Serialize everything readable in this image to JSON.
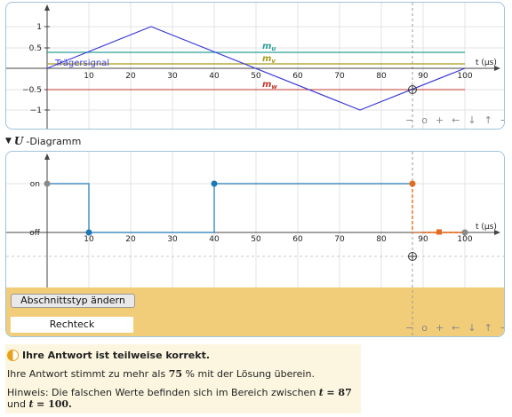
{
  "top_chart": {
    "x_axis_label": "t (µs)",
    "x_ticks": [
      "10",
      "20",
      "30",
      "40",
      "50",
      "60",
      "70",
      "80",
      "90",
      "100"
    ],
    "y_ticks": [
      "1",
      "0.5",
      "−0.5",
      "−1"
    ],
    "carrier_label": "Trägersignal",
    "series_labels": {
      "mu": "m",
      "mu_sub": "u",
      "mv": "m",
      "mv_sub": "v",
      "mw": "m",
      "mw_sub": "w"
    },
    "colors": {
      "carrier": "#3b3bd9",
      "mu": "#2aa198",
      "mv": "#a89a1c",
      "mw": "#c0392b"
    },
    "carrier_points": [
      [
        0,
        0
      ],
      [
        25,
        1
      ],
      [
        75,
        -1
      ],
      [
        100,
        0
      ]
    ],
    "mu_value": 0.4,
    "mv_value": 0.1,
    "mw_value": -0.5
  },
  "section": {
    "title_symbol": "U",
    "title_text": "-Diagramm"
  },
  "u_chart": {
    "x_axis_label": "t (µs)",
    "x_ticks": [
      "10",
      "20",
      "30",
      "40",
      "50",
      "60",
      "70",
      "80",
      "90",
      "100"
    ],
    "y_labels": {
      "on": "on",
      "off": "off"
    },
    "colors": {
      "signal": "#1f78b4",
      "highlight": "#e36b1e",
      "bg_band": "#f2cd79"
    }
  },
  "controls": [
    "−",
    "o",
    "+",
    "←",
    "↓",
    "↑",
    "→"
  ],
  "buttons": {
    "change_section_type": "Abschnittstyp ändern"
  },
  "section_type_value": "Rechteck",
  "feedback": {
    "title": "Ihre Antwort ist teilweise korrekt.",
    "line1_a": "Ihre Antwort stimmt zu mehr als",
    "line1_value": "75",
    "line1_b": "% mit der Lösung überein.",
    "line2_a": "Hinweis: Die falschen Werte befinden sich im Bereich zwischen",
    "line2_var1": "t",
    "line2_eq1": "= 87",
    "line2_mid": "und",
    "line2_var2": "t",
    "line2_eq2": "= 100."
  }
}
